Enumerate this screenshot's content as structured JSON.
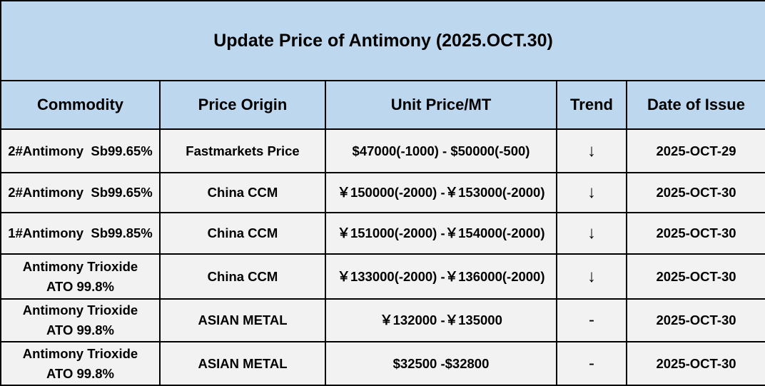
{
  "table": {
    "title": "Update Price of Antimony (2025.OCT.30)",
    "columns": [
      "Commodity",
      "Price Origin",
      "Unit Price/MT",
      "Trend",
      "Date of Issue"
    ],
    "rows": [
      [
        "2#Antimony  Sb99.65%",
        "Fastmarkets Price",
        "$47000(-1000) - $50000(-500)",
        "↓",
        "2025-OCT-29"
      ],
      [
        "2#Antimony  Sb99.65%",
        "China CCM",
        "￥150000(-2000) -￥153000(-2000)",
        "↓",
        "2025-OCT-30"
      ],
      [
        "1#Antimony  Sb99.85%",
        "China CCM",
        "￥151000(-2000) -￥154000(-2000)",
        "↓",
        "2025-OCT-30"
      ],
      [
        "Antimony Trioxide\nATO 99.8%",
        "China CCM",
        "￥133000(-2000) -￥136000(-2000)",
        "↓",
        "2025-OCT-30"
      ],
      [
        "Antimony Trioxide\nATO 99.8%",
        "ASIAN METAL",
        "￥132000 -￥135000",
        "-",
        "2025-OCT-30"
      ],
      [
        "Antimony Trioxide\nATO 99.8%",
        "ASIAN METAL",
        "$32500 -$32800",
        "-",
        "2025-OCT-30"
      ]
    ]
  }
}
